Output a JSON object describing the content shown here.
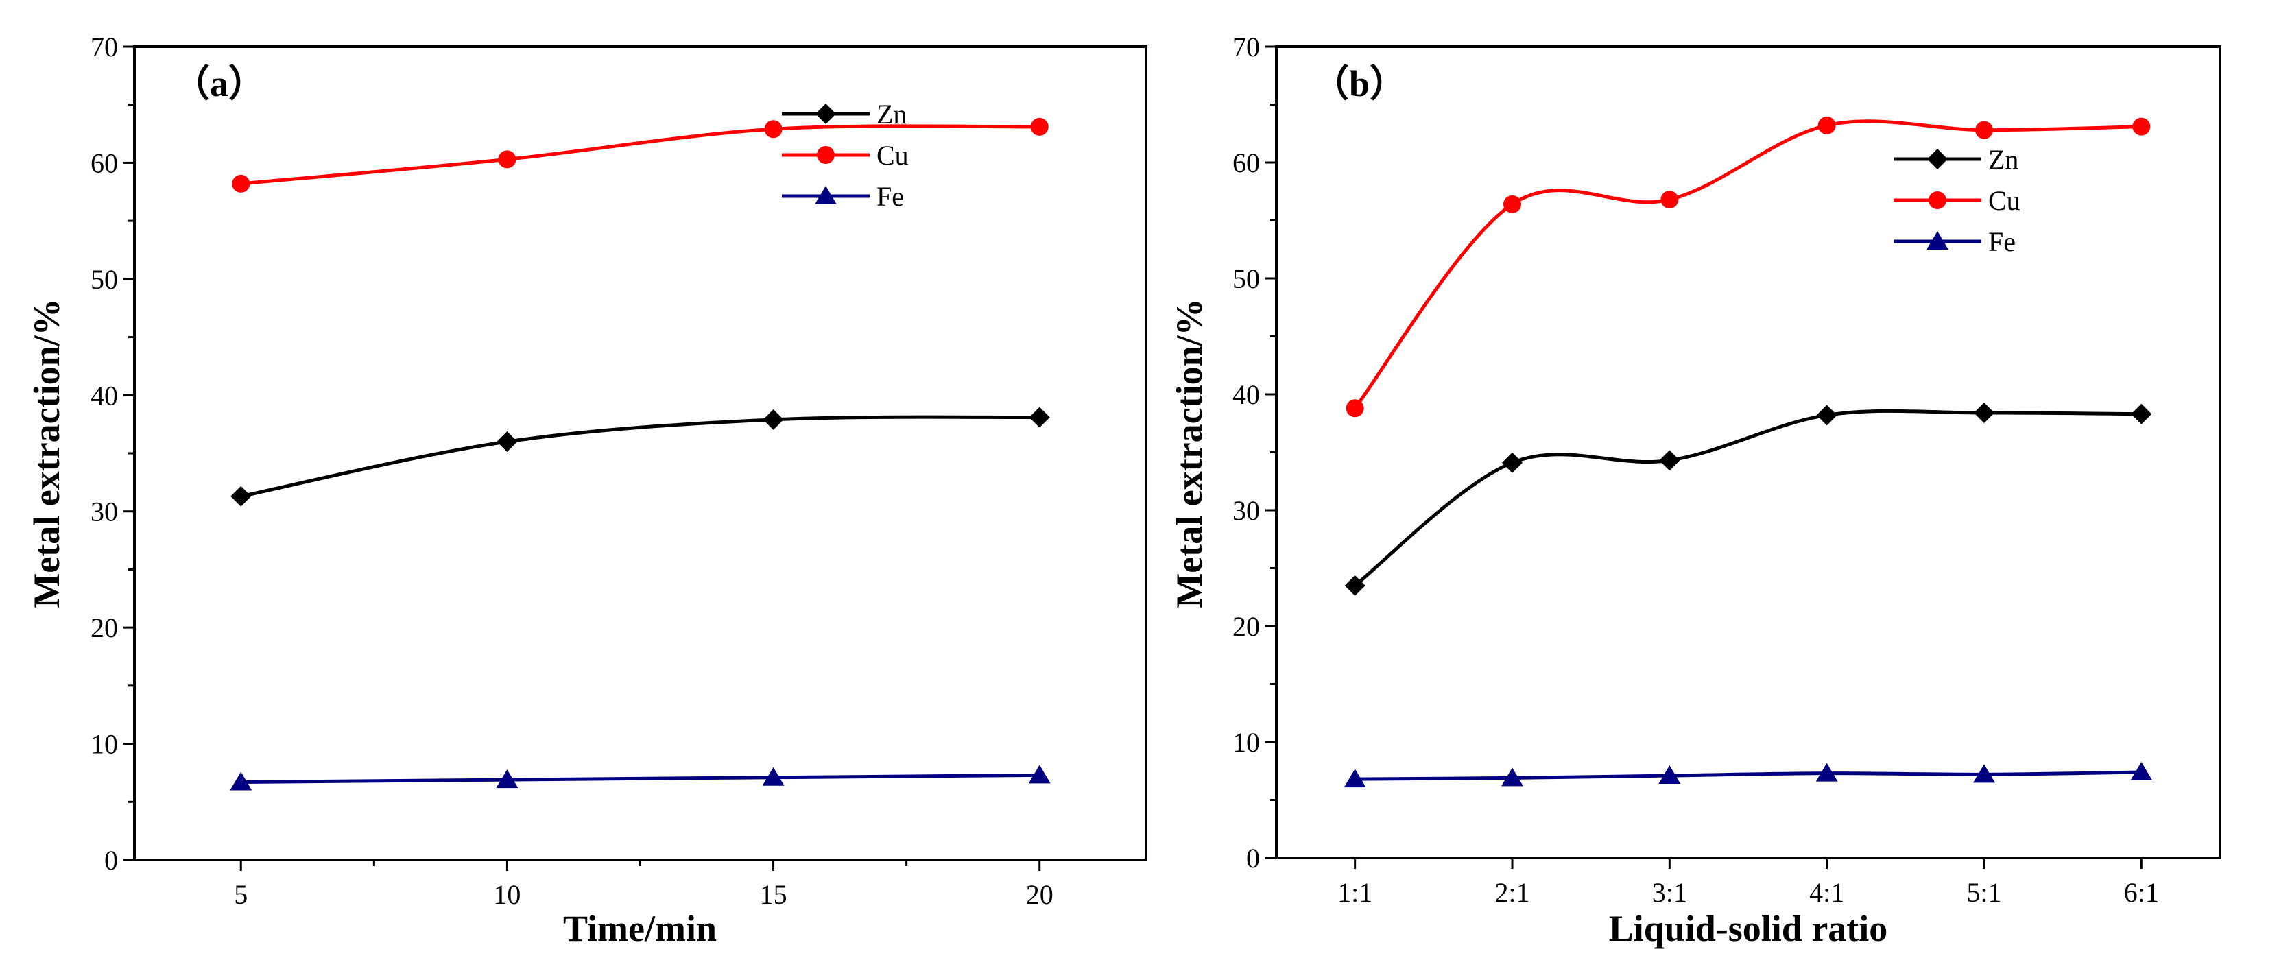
{
  "chart_data": [
    {
      "type": "line",
      "panel_label": "（a）",
      "xlabel": "Time/min",
      "ylabel": "Metal extraction/%",
      "x": [
        5,
        10,
        15,
        20
      ],
      "x_tick_labels": [
        "5",
        "10",
        "15",
        "20"
      ],
      "xlim": [
        3,
        22
      ],
      "ylim": [
        0,
        70
      ],
      "y_ticks": [
        0,
        10,
        20,
        30,
        40,
        50,
        60,
        70
      ],
      "grid": false,
      "legend_position": "top-right",
      "series": [
        {
          "name": "Zn",
          "color": "#000000",
          "marker": "diamond",
          "values": [
            31.3,
            36.0,
            37.9,
            38.1
          ]
        },
        {
          "name": "Cu",
          "color": "#ff0000",
          "marker": "circle",
          "values": [
            58.2,
            60.3,
            62.9,
            63.1
          ]
        },
        {
          "name": "Fe",
          "color": "#000080",
          "marker": "triangle",
          "values": [
            6.7,
            6.9,
            7.1,
            7.3
          ]
        }
      ]
    },
    {
      "type": "line",
      "panel_label": "（b）",
      "xlabel": "Liquid-solid ratio",
      "ylabel": "Metal extraction/%",
      "categories": [
        "1:1",
        "2:1",
        "3:1",
        "4:1",
        "5:1",
        "6:1"
      ],
      "ylim": [
        0,
        70
      ],
      "y_ticks": [
        0,
        10,
        20,
        30,
        40,
        50,
        60,
        70
      ],
      "grid": false,
      "legend_position": "top-right",
      "series": [
        {
          "name": "Zn",
          "color": "#000000",
          "marker": "diamond",
          "values": [
            23.5,
            34.1,
            34.3,
            38.2,
            38.4,
            38.3
          ]
        },
        {
          "name": "Cu",
          "color": "#ff0000",
          "marker": "circle",
          "values": [
            38.8,
            56.4,
            56.8,
            63.2,
            62.8,
            63.1
          ]
        },
        {
          "name": "Fe",
          "color": "#000080",
          "marker": "triangle",
          "values": [
            6.8,
            6.9,
            7.1,
            7.3,
            7.2,
            7.4
          ]
        }
      ]
    }
  ]
}
